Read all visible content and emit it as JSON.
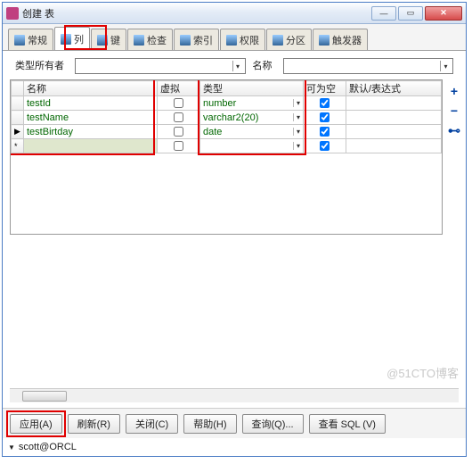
{
  "window": {
    "title": "创建 表"
  },
  "tabs": [
    {
      "id": "general",
      "label": "常规"
    },
    {
      "id": "columns",
      "label": "列",
      "active": true
    },
    {
      "id": "keys",
      "label": "键"
    },
    {
      "id": "checks",
      "label": "检查"
    },
    {
      "id": "indexes",
      "label": "索引"
    },
    {
      "id": "privs",
      "label": "权限"
    },
    {
      "id": "partitions",
      "label": "分区"
    },
    {
      "id": "triggers",
      "label": "触发器"
    }
  ],
  "filters": {
    "owner_label": "类型所有者",
    "name_label": "名称"
  },
  "grid": {
    "headers": {
      "name": "名称",
      "virtual": "虚拟",
      "type": "类型",
      "nullable": "可为空",
      "default": "默认/表达式"
    },
    "rows": [
      {
        "name": "testId",
        "virtual": false,
        "type": "number",
        "nullable": true,
        "default": ""
      },
      {
        "name": "testName",
        "virtual": false,
        "type": "varchar2(20)",
        "nullable": true,
        "default": ""
      },
      {
        "name": "testBirtday",
        "virtual": false,
        "type": "date",
        "nullable": true,
        "default": "",
        "marker": "▶"
      },
      {
        "name": "",
        "virtual": false,
        "type": "",
        "nullable": true,
        "default": "",
        "marker": "*",
        "blank": true
      }
    ]
  },
  "side": {
    "plus": "+",
    "minus": "−",
    "other": "⊷"
  },
  "buttons": {
    "apply": "应用(A)",
    "refresh": "刷新(R)",
    "close": "关闭(C)",
    "help": "帮助(H)",
    "query": "查询(Q)...",
    "sql": "查看 SQL (V)"
  },
  "status": {
    "conn": "scott@ORCL"
  },
  "watermark": "@51CTO博客",
  "highlight_color": "#e00000"
}
